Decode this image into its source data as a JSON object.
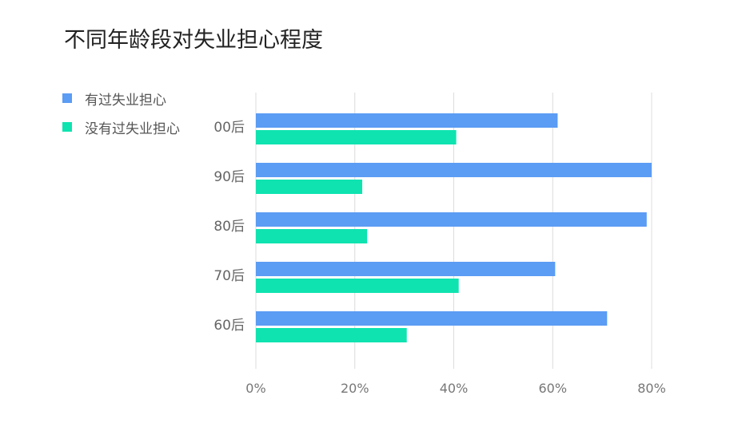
{
  "chart_data": {
    "type": "bar",
    "orientation": "horizontal",
    "title": "不同年龄段对失业担心程度",
    "categories": [
      "00后",
      "90后",
      "80后",
      "70后",
      "60后"
    ],
    "series": [
      {
        "name": "有过失业担心",
        "color": "#5b9cf4",
        "values": [
          61,
          80,
          79,
          60.5,
          71
        ]
      },
      {
        "name": "没有过失业担心",
        "color": "#0fe3b0",
        "values": [
          40.5,
          21.5,
          22.5,
          41,
          30.5
        ]
      }
    ],
    "xlim": [
      0,
      80
    ],
    "xticks": [
      "0%",
      "20%",
      "40%",
      "60%",
      "80%"
    ],
    "grid": true,
    "legend_position": "top-left"
  }
}
